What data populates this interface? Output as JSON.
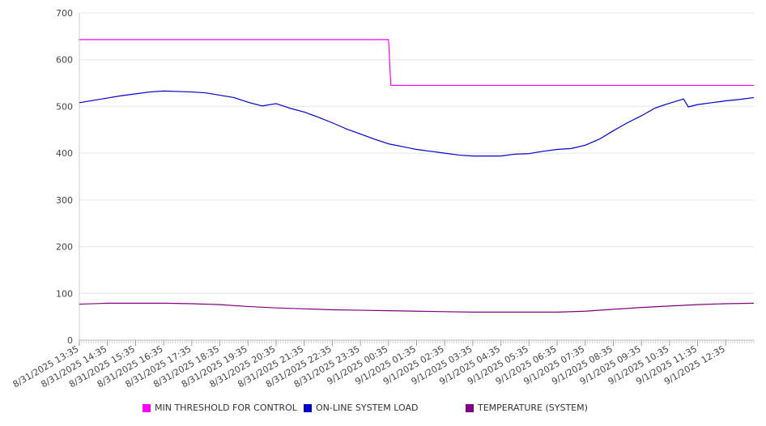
{
  "chart_data": {
    "type": "line",
    "title": "",
    "xlabel": "",
    "ylabel": "",
    "ylim": [
      0,
      700
    ],
    "yticks": [
      "0",
      "100",
      "200",
      "300",
      "400",
      "500",
      "600",
      "700"
    ],
    "x_range": [
      "8/31/2025 13:35",
      "9/1/2025 13:35"
    ],
    "x_tick_labels": [
      "8/31/2025 13:35",
      "8/31/2025 14:35",
      "8/31/2025 15:35",
      "8/31/2025 16:35",
      "8/31/2025 17:35",
      "8/31/2025 18:35",
      "8/31/2025 19:35",
      "8/31/2025 20:35",
      "8/31/2025 21:35",
      "8/31/2025 22:35",
      "8/31/2025 23:35",
      "9/1/2025 00:35",
      "9/1/2025 01:35",
      "9/1/2025 02:35",
      "9/1/2025 03:35",
      "9/1/2025 04:35",
      "9/1/2025 05:35",
      "9/1/2025 06:35",
      "9/1/2025 07:35",
      "9/1/2025 08:35",
      "9/1/2025 09:35",
      "9/1/2025 10:35",
      "9/1/2025 11:35",
      "9/1/2025 12:35"
    ],
    "grid": true,
    "legend_placement": "bottom",
    "series": [
      {
        "name": "MIN THRESHOLD FOR CONTROL",
        "color": "#ff00ff",
        "points": [
          [
            "8/31/2025 13:35",
            643
          ],
          [
            "9/1/2025 00:35",
            643
          ],
          [
            "9/1/2025 00:40",
            545
          ],
          [
            "9/1/2025 13:35",
            545
          ]
        ]
      },
      {
        "name": "ON-LINE SYSTEM LOAD",
        "color": "#0000cc",
        "points": [
          [
            "8/31/2025 13:35",
            508
          ],
          [
            "8/31/2025 14:05",
            513
          ],
          [
            "8/31/2025 14:35",
            518
          ],
          [
            "8/31/2025 15:05",
            523
          ],
          [
            "8/31/2025 15:35",
            527
          ],
          [
            "8/31/2025 16:05",
            531
          ],
          [
            "8/31/2025 16:35",
            533
          ],
          [
            "8/31/2025 17:05",
            532
          ],
          [
            "8/31/2025 17:35",
            531
          ],
          [
            "8/31/2025 18:05",
            529
          ],
          [
            "8/31/2025 18:35",
            524
          ],
          [
            "8/31/2025 19:05",
            519
          ],
          [
            "8/31/2025 19:35",
            509
          ],
          [
            "8/31/2025 20:05",
            501
          ],
          [
            "8/31/2025 20:35",
            506
          ],
          [
            "8/31/2025 21:05",
            496
          ],
          [
            "8/31/2025 21:35",
            488
          ],
          [
            "8/31/2025 22:05",
            477
          ],
          [
            "8/31/2025 22:35",
            465
          ],
          [
            "8/31/2025 23:05",
            452
          ],
          [
            "8/31/2025 23:35",
            441
          ],
          [
            "9/1/2025 00:05",
            430
          ],
          [
            "9/1/2025 00:35",
            420
          ],
          [
            "9/1/2025 01:05",
            414
          ],
          [
            "9/1/2025 01:35",
            408
          ],
          [
            "9/1/2025 02:05",
            404
          ],
          [
            "9/1/2025 02:35",
            400
          ],
          [
            "9/1/2025 03:05",
            396
          ],
          [
            "9/1/2025 03:35",
            394
          ],
          [
            "9/1/2025 04:05",
            394
          ],
          [
            "9/1/2025 04:35",
            394
          ],
          [
            "9/1/2025 05:05",
            398
          ],
          [
            "9/1/2025 05:35",
            399
          ],
          [
            "9/1/2025 06:05",
            404
          ],
          [
            "9/1/2025 06:35",
            408
          ],
          [
            "9/1/2025 07:05",
            410
          ],
          [
            "9/1/2025 07:35",
            417
          ],
          [
            "9/1/2025 08:05",
            430
          ],
          [
            "9/1/2025 08:35",
            448
          ],
          [
            "9/1/2025 09:05",
            465
          ],
          [
            "9/1/2025 09:35",
            480
          ],
          [
            "9/1/2025 10:05",
            497
          ],
          [
            "9/1/2025 10:35",
            507
          ],
          [
            "9/1/2025 11:05",
            516
          ],
          [
            "9/1/2025 11:15",
            499
          ],
          [
            "9/1/2025 11:35",
            504
          ],
          [
            "9/1/2025 12:05",
            508
          ],
          [
            "9/1/2025 12:35",
            512
          ],
          [
            "9/1/2025 13:05",
            515
          ],
          [
            "9/1/2025 13:35",
            519
          ]
        ]
      },
      {
        "name": "TEMPERATURE (SYSTEM)",
        "color": "#800080",
        "points": [
          [
            "8/31/2025 13:35",
            77
          ],
          [
            "8/31/2025 14:35",
            79
          ],
          [
            "8/31/2025 15:35",
            79
          ],
          [
            "8/31/2025 16:35",
            79
          ],
          [
            "8/31/2025 17:35",
            78
          ],
          [
            "8/31/2025 18:35",
            76
          ],
          [
            "8/31/2025 19:35",
            72
          ],
          [
            "8/31/2025 20:35",
            69
          ],
          [
            "8/31/2025 21:35",
            67
          ],
          [
            "8/31/2025 22:35",
            65
          ],
          [
            "8/31/2025 23:35",
            64
          ],
          [
            "9/1/2025 00:35",
            63
          ],
          [
            "9/1/2025 01:35",
            62
          ],
          [
            "9/1/2025 02:35",
            61
          ],
          [
            "9/1/2025 03:35",
            60
          ],
          [
            "9/1/2025 04:35",
            60
          ],
          [
            "9/1/2025 05:35",
            60
          ],
          [
            "9/1/2025 06:35",
            60
          ],
          [
            "9/1/2025 07:35",
            62
          ],
          [
            "9/1/2025 08:35",
            66
          ],
          [
            "9/1/2025 09:35",
            70
          ],
          [
            "9/1/2025 10:35",
            73
          ],
          [
            "9/1/2025 11:35",
            76
          ],
          [
            "9/1/2025 12:35",
            78
          ],
          [
            "9/1/2025 13:35",
            79
          ]
        ]
      }
    ]
  }
}
